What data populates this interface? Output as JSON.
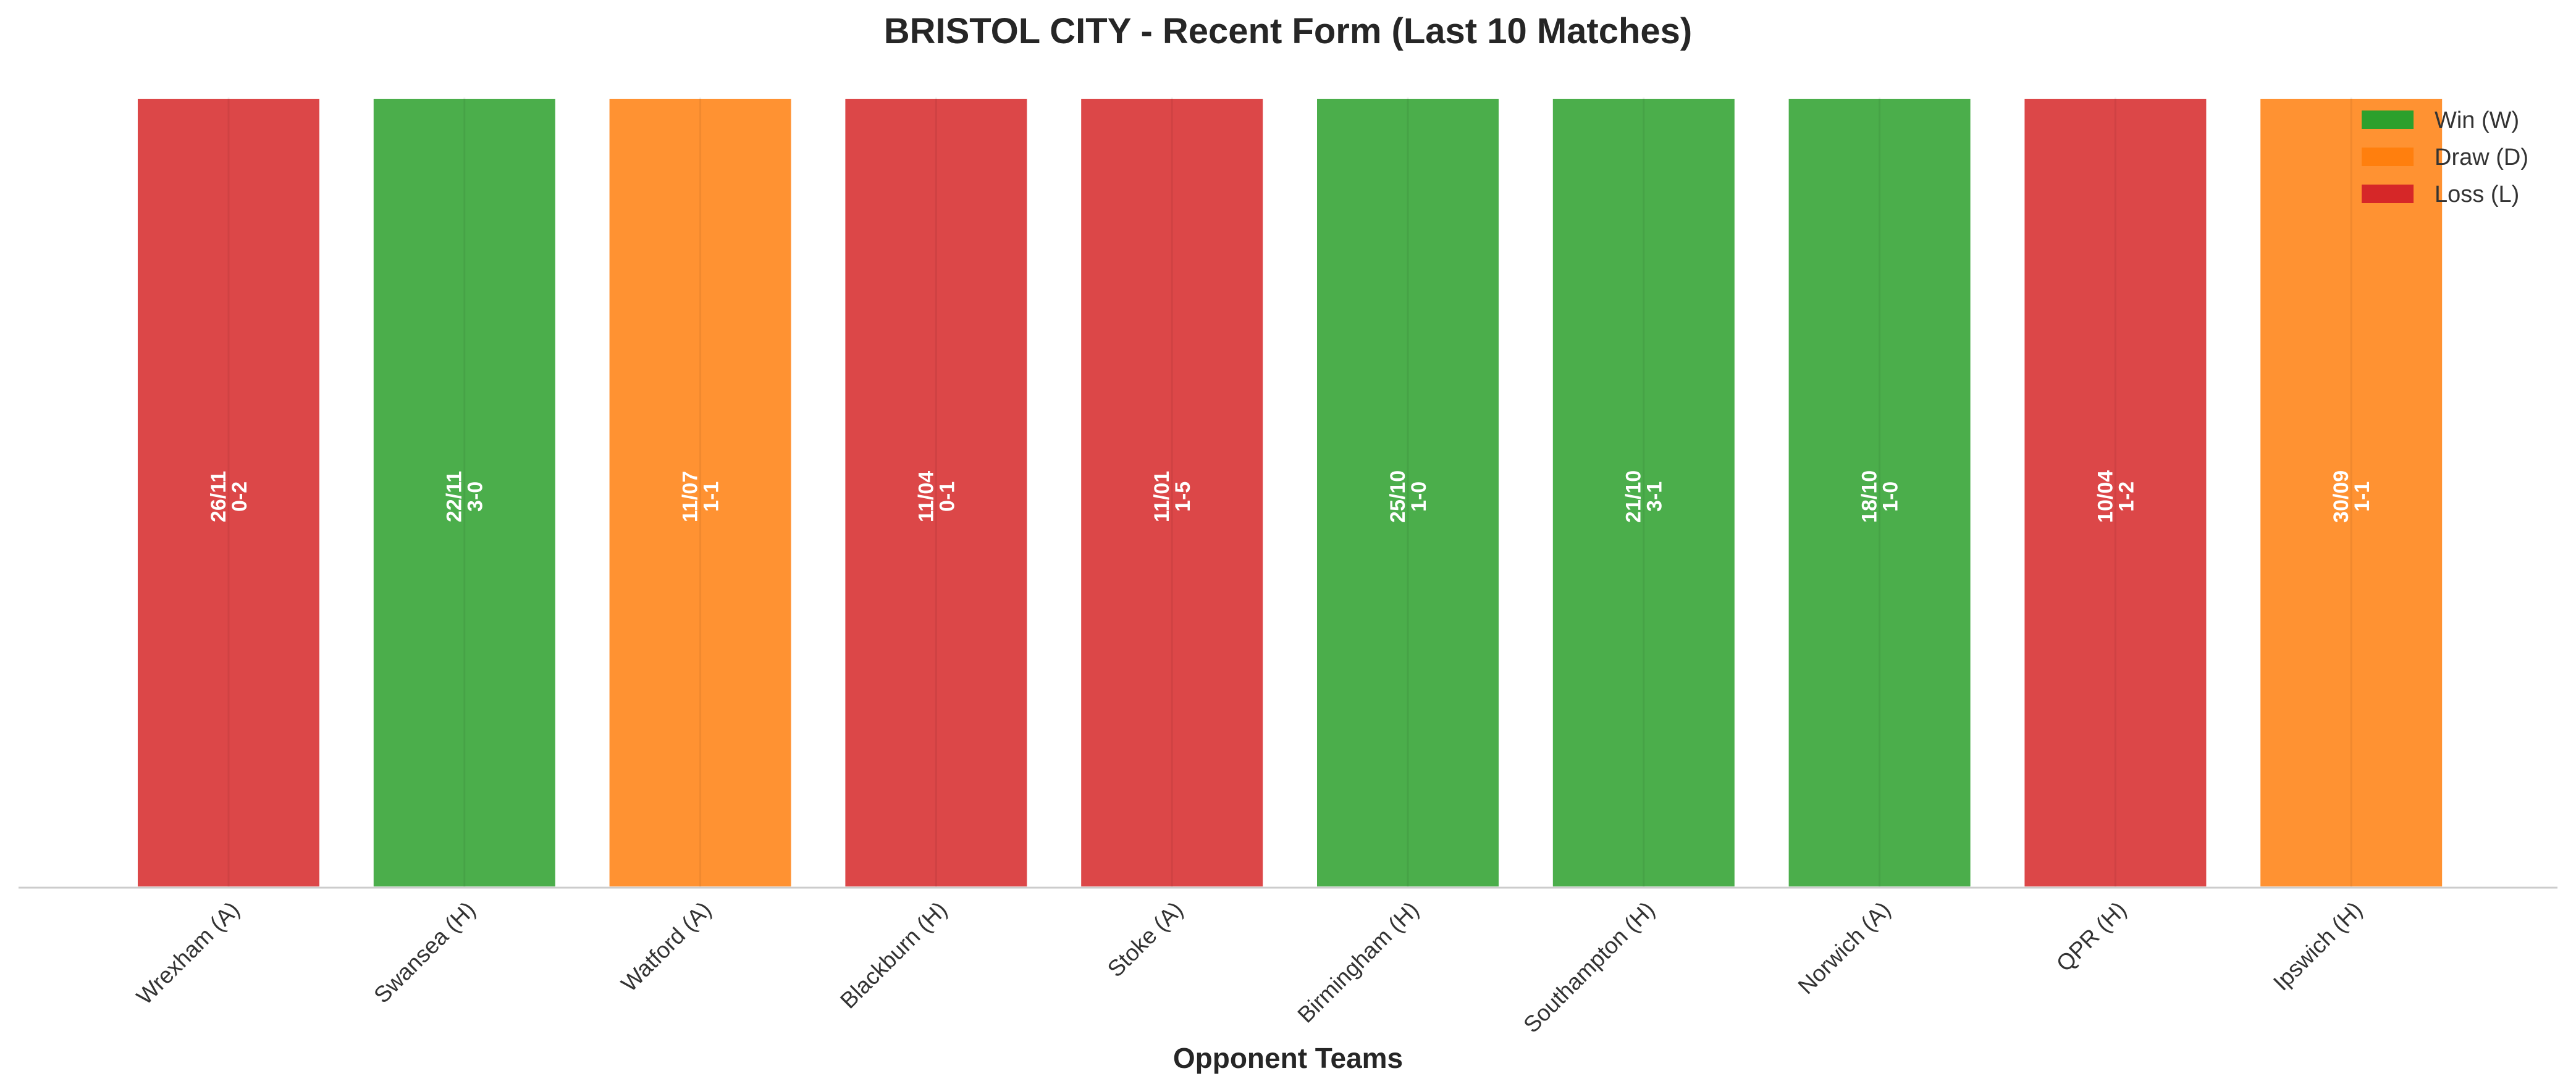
{
  "chart_data": {
    "type": "bar",
    "title": "BRISTOL CITY - Recent Form (Last 10 Matches)",
    "xlabel": "Opponent Teams",
    "ylabel": "",
    "ylim": [
      0,
      1
    ],
    "grid": false,
    "legend_position": "top-right",
    "categories": [
      "Wrexham (A)",
      "Swansea (H)",
      "Watford (A)",
      "Blackburn (H)",
      "Stoke (A)",
      "Birmingham (H)",
      "Southampton (H)",
      "Norwich (A)",
      "QPR (H)",
      "Ipswich (H)"
    ],
    "values": [
      1,
      1,
      1,
      1,
      1,
      1,
      1,
      1,
      1,
      1
    ],
    "results": [
      "L",
      "W",
      "D",
      "L",
      "L",
      "W",
      "W",
      "W",
      "L",
      "D"
    ],
    "dates": [
      "26/11",
      "22/11",
      "11/07",
      "11/04",
      "11/01",
      "25/10",
      "21/10",
      "18/10",
      "10/04",
      "30/09"
    ],
    "scores": [
      "0-2",
      "3-0",
      "1-1",
      "0-1",
      "1-5",
      "1-0",
      "3-1",
      "1-0",
      "1-2",
      "1-1"
    ],
    "legend": [
      {
        "key": "W",
        "label": "Win (W)",
        "color": "#2ca02c"
      },
      {
        "key": "D",
        "label": "Draw (D)",
        "color": "#ff7f0e"
      },
      {
        "key": "L",
        "label": "Loss (L)",
        "color": "#d62728"
      }
    ],
    "colors": {
      "W": "#2ca02c",
      "D": "#ff7f0e",
      "L": "#d62728"
    }
  }
}
